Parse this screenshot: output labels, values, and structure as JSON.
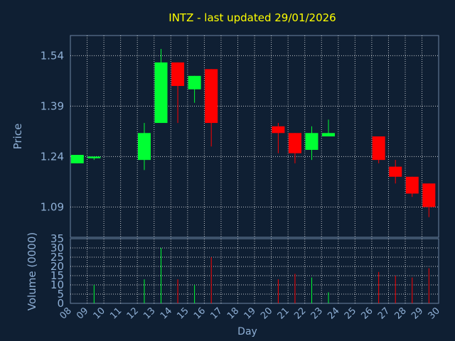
{
  "chart_data": [
    {
      "type": "candlestick",
      "title": "INTZ - last updated 29/01/2026",
      "xlabel": "Day",
      "ylabel": "Price",
      "ylim": [
        1.0,
        1.6
      ],
      "y_ticks": [
        1.09,
        1.24,
        1.39,
        1.54
      ],
      "grid": true,
      "colors": {
        "up": "#00ff33",
        "down": "#ff0000",
        "title": "#ffff00",
        "axis_text": "#8fb0d6",
        "background": "#0f1f33",
        "grid": "#ffffff"
      },
      "x_ticks": [
        "08",
        "09",
        "10",
        "11",
        "12",
        "13",
        "14",
        "15",
        "16",
        "17",
        "18",
        "19",
        "20",
        "21",
        "22",
        "23",
        "24",
        "25",
        "26",
        "27",
        "28",
        "29",
        "30"
      ],
      "candles": [
        {
          "day": "08",
          "open": 1.22,
          "high": 1.245,
          "low": 1.22,
          "close": 1.245
        },
        {
          "day": "09",
          "open": 1.235,
          "high": 1.24,
          "low": 1.23,
          "close": 1.24
        },
        {
          "day": "12",
          "open": 1.23,
          "high": 1.34,
          "low": 1.2,
          "close": 1.31
        },
        {
          "day": "13",
          "open": 1.34,
          "high": 1.56,
          "low": 1.34,
          "close": 1.52
        },
        {
          "day": "14",
          "open": 1.52,
          "high": 1.52,
          "low": 1.34,
          "close": 1.45
        },
        {
          "day": "15",
          "open": 1.44,
          "high": 1.48,
          "low": 1.4,
          "close": 1.48
        },
        {
          "day": "16",
          "open": 1.5,
          "high": 1.5,
          "low": 1.27,
          "close": 1.34
        },
        {
          "day": "20",
          "open": 1.33,
          "high": 1.34,
          "low": 1.25,
          "close": 1.31
        },
        {
          "day": "21",
          "open": 1.31,
          "high": 1.31,
          "low": 1.22,
          "close": 1.25
        },
        {
          "day": "22",
          "open": 1.26,
          "high": 1.33,
          "low": 1.23,
          "close": 1.31
        },
        {
          "day": "23",
          "open": 1.3,
          "high": 1.35,
          "low": 1.3,
          "close": 1.31
        },
        {
          "day": "26",
          "open": 1.3,
          "high": 1.3,
          "low": 1.22,
          "close": 1.23
        },
        {
          "day": "27",
          "open": 1.21,
          "high": 1.23,
          "low": 1.16,
          "close": 1.18
        },
        {
          "day": "28",
          "open": 1.18,
          "high": 1.18,
          "low": 1.12,
          "close": 1.13
        },
        {
          "day": "29",
          "open": 1.16,
          "high": 1.16,
          "low": 1.06,
          "close": 1.09
        }
      ]
    },
    {
      "type": "bar",
      "ylabel": "Volume (0000)",
      "ylim": [
        0,
        35
      ],
      "y_ticks": [
        0,
        5,
        10,
        15,
        20,
        25,
        30,
        35
      ],
      "grid": true,
      "x_ticks": [
        "08",
        "09",
        "10",
        "11",
        "12",
        "13",
        "14",
        "15",
        "16",
        "17",
        "18",
        "19",
        "20",
        "21",
        "22",
        "23",
        "24",
        "25",
        "26",
        "27",
        "28",
        "29",
        "30"
      ],
      "bars": [
        {
          "day": "09",
          "value": 10,
          "direction": "up"
        },
        {
          "day": "12",
          "value": 13,
          "direction": "up"
        },
        {
          "day": "13",
          "value": 30,
          "direction": "up"
        },
        {
          "day": "14",
          "value": 13,
          "direction": "down"
        },
        {
          "day": "15",
          "value": 10,
          "direction": "up"
        },
        {
          "day": "16",
          "value": 25,
          "direction": "down"
        },
        {
          "day": "20",
          "value": 13,
          "direction": "down"
        },
        {
          "day": "21",
          "value": 16,
          "direction": "down"
        },
        {
          "day": "22",
          "value": 14,
          "direction": "up"
        },
        {
          "day": "23",
          "value": 6,
          "direction": "up"
        },
        {
          "day": "26",
          "value": 17,
          "direction": "down"
        },
        {
          "day": "27",
          "value": 15,
          "direction": "down"
        },
        {
          "day": "28",
          "value": 14,
          "direction": "down"
        },
        {
          "day": "29",
          "value": 19,
          "direction": "down"
        }
      ]
    }
  ]
}
